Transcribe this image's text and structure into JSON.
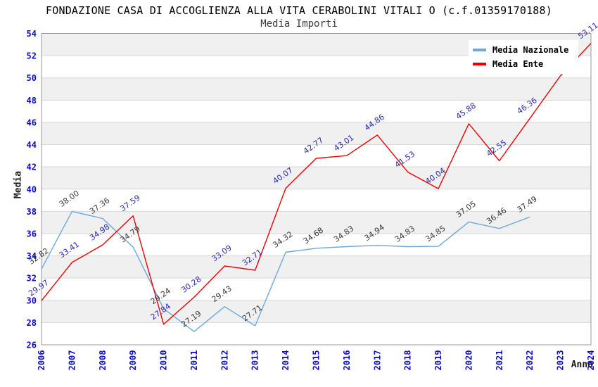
{
  "header": {
    "title": "FONDAZIONE CASA DI ACCOGLIENZA ALLA VITA CERABOLINI VITALI O (c.f.01359170188)",
    "subtitle": "Media Importi"
  },
  "axes": {
    "x_title": "Anno",
    "y_title": "Media",
    "y_tick_labels": [
      "26",
      "28",
      "30",
      "32",
      "34",
      "36",
      "38",
      "40",
      "42",
      "44",
      "46",
      "48",
      "50",
      "52",
      "54"
    ],
    "x_tick_labels": [
      "2006",
      "2007",
      "2008",
      "2009",
      "2010",
      "2011",
      "2012",
      "2013",
      "2014",
      "2015",
      "2016",
      "2017",
      "2018",
      "2019",
      "2020",
      "2021",
      "2022",
      "2023",
      "2024"
    ]
  },
  "legend": {
    "items": [
      {
        "label": "Media Nazionale",
        "color": "#6aaade"
      },
      {
        "label": "Media Ente",
        "color": "#ee0000"
      }
    ]
  },
  "chart_data": {
    "type": "line",
    "title": "Media Importi",
    "xlabel": "Anno",
    "ylabel": "Media",
    "x": [
      "2006",
      "2007",
      "2008",
      "2009",
      "2010",
      "2011",
      "2012",
      "2013",
      "2014",
      "2015",
      "2016",
      "2017",
      "2018",
      "2019",
      "2020",
      "2021",
      "2022",
      "2023",
      "2024"
    ],
    "ylim": [
      26,
      54
    ],
    "ytick_step": 2,
    "grid": "horizontal",
    "alternating_bands": true,
    "legend_position": "top-right",
    "series": [
      {
        "name": "Media Nazionale",
        "color": "#6aaade",
        "label_color": "#3a3a3a",
        "values": [
          32.82,
          38.0,
          37.36,
          34.79,
          29.24,
          27.19,
          29.43,
          27.71,
          34.32,
          34.68,
          34.83,
          34.94,
          34.83,
          34.85,
          37.05,
          36.46,
          37.49
        ],
        "labels": [
          "32.82",
          "38.00",
          "37.36",
          "34.79",
          "29.24",
          "27.19",
          "29.43",
          "27.71",
          "34.32",
          "34.68",
          "34.83",
          "34.94",
          "34.83",
          "34.85",
          "37.05",
          "36.46",
          "37.49"
        ]
      },
      {
        "name": "Media Ente",
        "color": "#ee0000",
        "label_color": "#2a2aae",
        "values": [
          29.97,
          33.41,
          34.98,
          37.59,
          27.84,
          30.28,
          33.09,
          32.71,
          40.07,
          42.77,
          43.01,
          44.86,
          41.53,
          40.04,
          45.88,
          42.55,
          46.36,
          50.2,
          53.11
        ],
        "labels": [
          "29.97",
          "33.41",
          "34.98",
          "37.59",
          "27.84",
          "30.28",
          "33.09",
          "32.71",
          "40.07",
          "42.77",
          "43.01",
          "44.86",
          "41.53",
          "40.04",
          "45.88",
          "42.55",
          "46.36",
          null,
          "53.11"
        ]
      }
    ]
  },
  "colors": {
    "tick_label": "#0a0acd",
    "band": "#f0f0f0",
    "gridline": "#d8d8d8",
    "frame": "#9a9a9a",
    "background": "#ffffff"
  }
}
